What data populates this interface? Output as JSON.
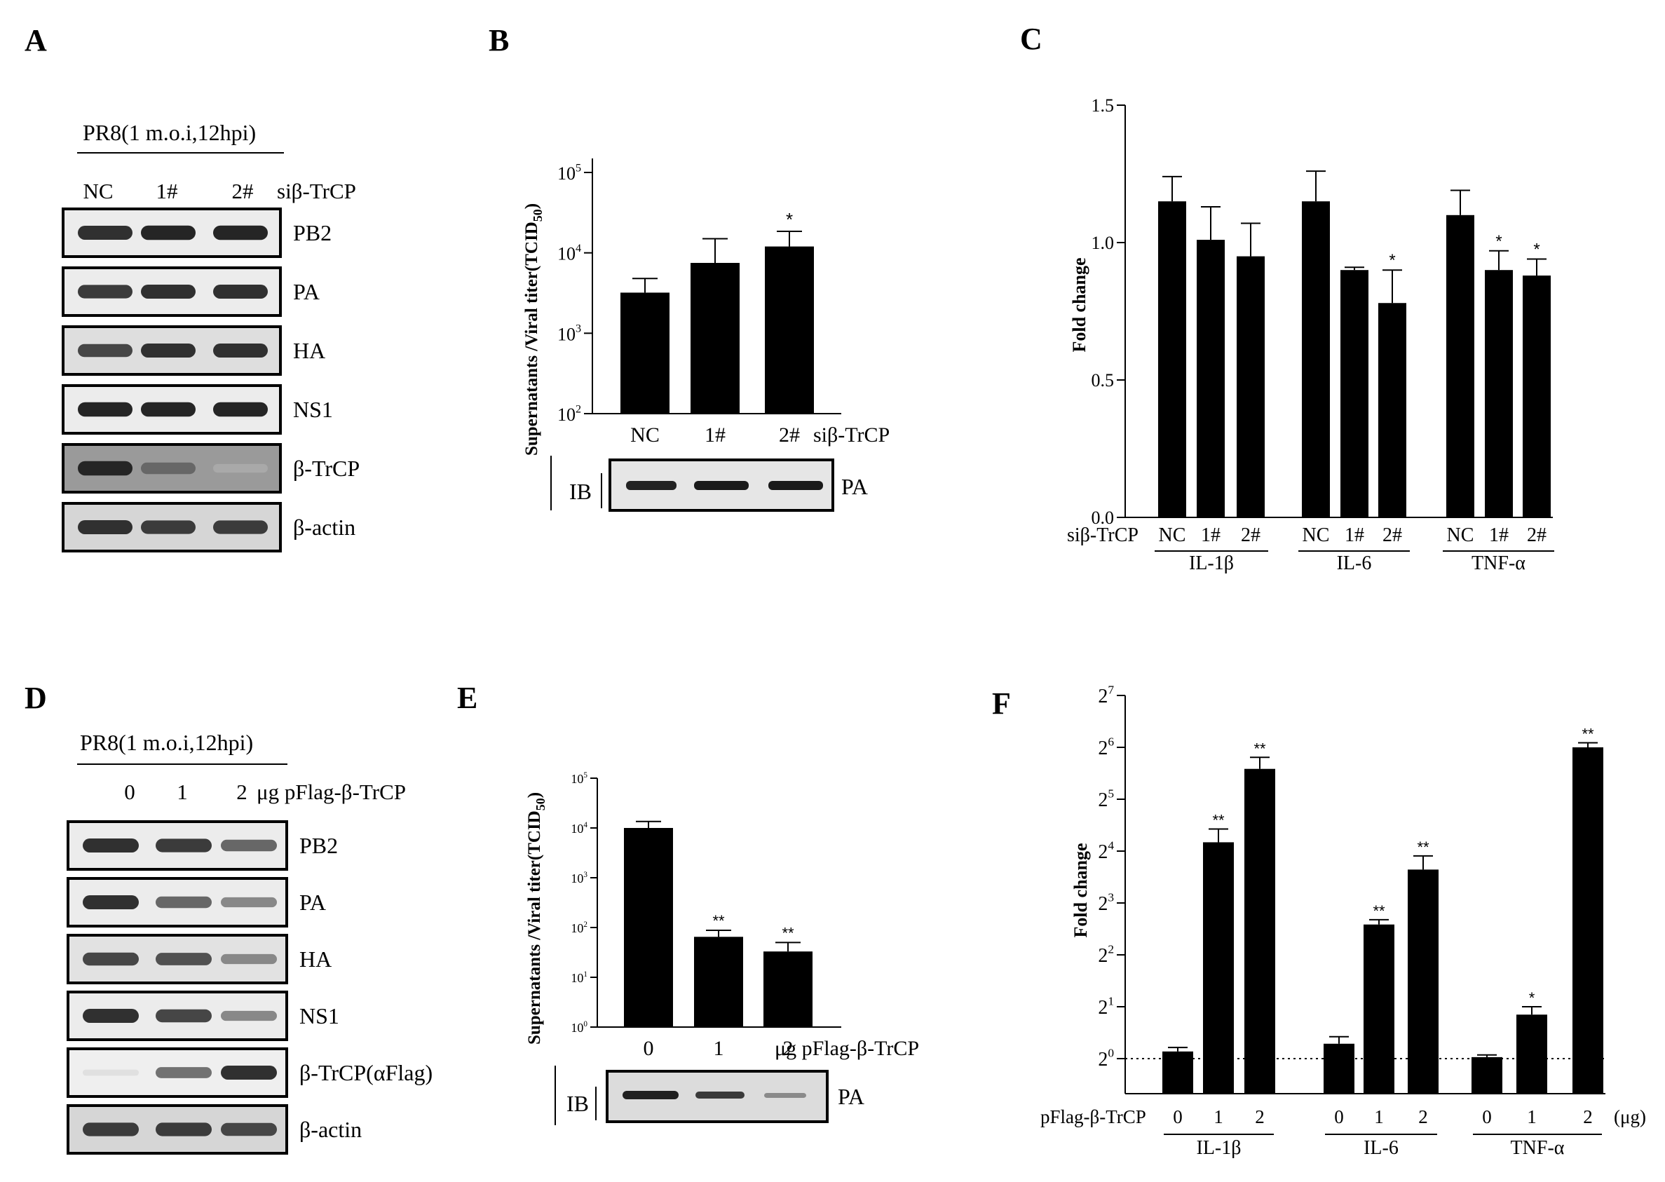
{
  "panels": {
    "A": {
      "letter": "A",
      "condition": "PR8(1 m.o.i,12hpi)",
      "lanes": [
        "NC",
        "1#",
        "2#"
      ],
      "lane_suffix": "siβ-TrCP",
      "blots": [
        {
          "label": "PB2",
          "bands": [
            0.85,
            0.9,
            0.9
          ],
          "bg": "#ececec"
        },
        {
          "label": "PA",
          "bands": [
            0.8,
            0.85,
            0.85
          ],
          "bg": "#ececec"
        },
        {
          "label": "HA",
          "bands": [
            0.75,
            0.85,
            0.85
          ],
          "bg": "#dedede"
        },
        {
          "label": "NS1",
          "bands": [
            0.9,
            0.9,
            0.9
          ],
          "bg": "#ececec"
        },
        {
          "label": "β-TrCP",
          "bands": [
            0.9,
            0.6,
            0.3
          ],
          "bg": "#9a9a9a"
        },
        {
          "label": "β-actin",
          "bands": [
            0.85,
            0.8,
            0.8
          ],
          "bg": "#d6d6d6"
        }
      ]
    },
    "B": {
      "letter": "B",
      "ylabel_prefix": "Supernatants /Viral titer(TCID",
      "ylabel_sub": "50",
      "ylabel_suffix": ")",
      "ytick_base": "10",
      "ytick_exps": [
        "2",
        "3",
        "4",
        "5"
      ],
      "categories": [
        "NC",
        "1#",
        "2#"
      ],
      "cat_suffix": "siβ-TrCP",
      "ib_label": "IB",
      "ib_blot_label": "PA",
      "stars": [
        "",
        "",
        "*"
      ]
    },
    "C": {
      "letter": "C",
      "ylabel": "Fold change",
      "yticks": [
        "0.0",
        "0.5",
        "1.0",
        "1.5"
      ],
      "row_label": "siβ-TrCP",
      "groups": [
        {
          "name": "IL-1β",
          "cats": [
            "NC",
            "1#",
            "2#"
          ],
          "stars": [
            "",
            "",
            ""
          ]
        },
        {
          "name": "IL-6",
          "cats": [
            "NC",
            "1#",
            "2#"
          ],
          "stars": [
            "",
            "",
            "*"
          ]
        },
        {
          "name": "TNF-α",
          "cats": [
            "NC",
            "1#",
            "2#"
          ],
          "stars": [
            "",
            "*",
            "*"
          ]
        }
      ]
    },
    "D": {
      "letter": "D",
      "condition": "PR8(1 m.o.i,12hpi)",
      "lanes": [
        "0",
        "1",
        "2"
      ],
      "lane_suffix": "μg  pFlag-β-TrCP",
      "blots": [
        {
          "label": "PB2",
          "bands": [
            0.85,
            0.8,
            0.6
          ],
          "bg": "#ececec"
        },
        {
          "label": "PA",
          "bands": [
            0.85,
            0.6,
            0.45
          ],
          "bg": "#ececec"
        },
        {
          "label": "HA",
          "bands": [
            0.75,
            0.7,
            0.45
          ],
          "bg": "#e2e2e2"
        },
        {
          "label": "NS1",
          "bands": [
            0.85,
            0.75,
            0.45
          ],
          "bg": "#ececec"
        },
        {
          "label": "β-TrCP(αFlag)",
          "bands": [
            0.05,
            0.55,
            0.85
          ],
          "bg": "#efefef"
        },
        {
          "label": "β-actin",
          "bands": [
            0.8,
            0.8,
            0.75
          ],
          "bg": "#d6d6d6"
        }
      ]
    },
    "E": {
      "letter": "E",
      "ylabel_prefix": "Supernatants /Viral titer(TCID",
      "ylabel_sub": "50",
      "ylabel_suffix": ")",
      "ytick_base": "10",
      "ytick_exps": [
        "0",
        "1",
        "2",
        "3",
        "4",
        "5"
      ],
      "categories": [
        "0",
        "1",
        "2"
      ],
      "cat_suffix": "μg pFlag-β-TrCP",
      "ib_label": "IB",
      "ib_blot_label": "PA",
      "stars": [
        "",
        "**",
        "**"
      ]
    },
    "F": {
      "letter": "F",
      "ylabel": "Fold change",
      "ytick_base": "2",
      "ytick_exps": [
        "0",
        "1",
        "2",
        "3",
        "4",
        "5",
        "6",
        "7"
      ],
      "row_label": "pFlag-β-TrCP",
      "unit": "(μg)",
      "groups": [
        {
          "name": "IL-1β",
          "cats": [
            "0",
            "1",
            "2"
          ],
          "stars": [
            "",
            "**",
            "**"
          ]
        },
        {
          "name": "IL-6",
          "cats": [
            "0",
            "1",
            "2"
          ],
          "stars": [
            "",
            "**",
            "**"
          ]
        },
        {
          "name": "TNF-α",
          "cats": [
            "0",
            "1",
            "2"
          ],
          "stars": [
            "",
            "*",
            "**"
          ]
        }
      ]
    }
  },
  "chart_data": [
    {
      "panel": "B",
      "type": "bar",
      "yscale": "log10",
      "title": "",
      "xlabel": "siβ-TrCP",
      "ylabel": "Supernatants /Viral titer(TCID50)",
      "categories": [
        "NC",
        "1#",
        "2#"
      ],
      "values": [
        3200,
        7500,
        12000
      ],
      "errors": [
        4800,
        15000,
        18500
      ],
      "ylim": [
        100,
        100000
      ]
    },
    {
      "panel": "C",
      "type": "bar",
      "title": "",
      "xlabel": "siβ-TrCP",
      "ylabel": "Fold change",
      "categories": [
        "NC",
        "1#",
        "2#"
      ],
      "series": [
        {
          "name": "IL-1β",
          "values": [
            1.15,
            1.01,
            0.95
          ],
          "errors": [
            1.24,
            1.13,
            1.07
          ]
        },
        {
          "name": "IL-6",
          "values": [
            1.15,
            0.9,
            0.78
          ],
          "errors": [
            1.26,
            0.91,
            0.9
          ]
        },
        {
          "name": "TNF-α",
          "values": [
            1.1,
            0.9,
            0.88
          ],
          "errors": [
            1.19,
            0.97,
            0.94
          ]
        }
      ],
      "ylim": [
        0,
        1.5
      ]
    },
    {
      "panel": "E",
      "type": "bar",
      "yscale": "log10",
      "title": "",
      "xlabel": "μg pFlag-β-TrCP",
      "ylabel": "Supernatants /Viral titer(TCID50)",
      "categories": [
        "0",
        "1",
        "2"
      ],
      "values": [
        10000,
        65,
        33
      ],
      "errors": [
        13500,
        88,
        50
      ],
      "ylim": [
        1,
        100000
      ]
    },
    {
      "panel": "F",
      "type": "bar",
      "yscale": "log2",
      "title": "",
      "xlabel": "pFlag-β-TrCP (μg)",
      "ylabel": "Fold change",
      "categories": [
        "0",
        "1",
        "2"
      ],
      "series": [
        {
          "name": "IL-1β",
          "values": [
            1.1,
            18,
            48
          ],
          "errors": [
            1.16,
            21.5,
            56
          ]
        },
        {
          "name": "IL-6",
          "values": [
            1.22,
            6,
            12.5
          ],
          "errors": [
            1.34,
            6.4,
            15
          ]
        },
        {
          "name": "TNF-α",
          "values": [
            1.02,
            1.8,
            64
          ],
          "errors": [
            1.05,
            2.0,
            68
          ]
        }
      ],
      "reference_line": 1,
      "ylim": [
        0.75,
        128
      ]
    }
  ]
}
